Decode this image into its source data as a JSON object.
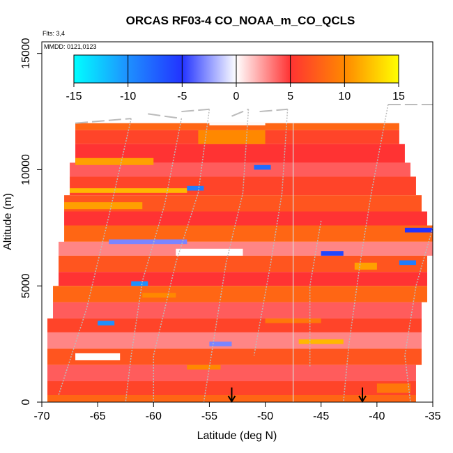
{
  "chart_data": {
    "type": "heatmap",
    "title": "ORCAS RF03-4 CO_NOAA_m_CO_QCLS",
    "flights_label": "Flts: 3,4",
    "date_label": "MMDD: 0121,0123",
    "xlabel": "Latitude (deg N)",
    "ylabel": "Altitude (m)",
    "xlim": [
      -70,
      -35
    ],
    "ylim": [
      0,
      15500
    ],
    "x_ticks": [
      -70,
      -65,
      -60,
      -55,
      -50,
      -45,
      -40,
      -35
    ],
    "x_tick_labels": [
      "-70",
      "-65",
      "-60",
      "-55",
      "-50",
      "-45",
      "-40",
      "-35"
    ],
    "y_ticks": [
      0,
      5000,
      10000,
      15000
    ],
    "y_tick_labels": [
      "0",
      "5000",
      "10000",
      "15000"
    ],
    "colorbar": {
      "range": [
        -15,
        15
      ],
      "ticks": [
        -15,
        -10,
        -5,
        0,
        5,
        10,
        15
      ],
      "tick_labels": [
        "-15",
        "-10",
        "-5",
        "0",
        "5",
        "10",
        "15"
      ],
      "colors": [
        "#00ffff",
        "#1e90ff",
        "#2233ff",
        "#ffffff",
        "#ff3333",
        "#ff8800",
        "#ffff00"
      ]
    },
    "arrow_latitudes": [
      -53,
      -41.3
    ],
    "vertical_line_latitude": -47.5,
    "profile_bands": [
      {
        "lat": [
          -67.0,
          -38.0
        ],
        "alt": [
          11700,
          12000
        ],
        "value": 8
      },
      {
        "lat": [
          -67.0,
          -38.0
        ],
        "alt": [
          11100,
          11700
        ],
        "value": 6
      },
      {
        "lat": [
          -67.0,
          -37.5
        ],
        "alt": [
          10300,
          11100
        ],
        "value": 5
      },
      {
        "lat": [
          -67.5,
          -37.0
        ],
        "alt": [
          9700,
          10300
        ],
        "value": 4
      },
      {
        "lat": [
          -67.5,
          -36.5
        ],
        "alt": [
          8900,
          9700
        ],
        "value": 6
      },
      {
        "lat": [
          -68.0,
          -36.0
        ],
        "alt": [
          8200,
          8900
        ],
        "value": 7
      },
      {
        "lat": [
          -68.0,
          -35.5
        ],
        "alt": [
          7600,
          8200
        ],
        "value": 5
      },
      {
        "lat": [
          -68.0,
          -35.0
        ],
        "alt": [
          6900,
          7600
        ],
        "value": 8
      },
      {
        "lat": [
          -68.5,
          -35.0
        ],
        "alt": [
          6300,
          6900
        ],
        "value": 3
      },
      {
        "lat": [
          -68.5,
          -35.5
        ],
        "alt": [
          5600,
          6300
        ],
        "value": 7
      },
      {
        "lat": [
          -68.5,
          -35.5
        ],
        "alt": [
          5000,
          5600
        ],
        "value": 5
      },
      {
        "lat": [
          -69.0,
          -35.5
        ],
        "alt": [
          4300,
          5000
        ],
        "value": 8
      },
      {
        "lat": [
          -69.0,
          -36.0
        ],
        "alt": [
          3600,
          4300
        ],
        "value": 4
      },
      {
        "lat": [
          -69.5,
          -36.0
        ],
        "alt": [
          3000,
          3600
        ],
        "value": 6
      },
      {
        "lat": [
          -69.5,
          -36.0
        ],
        "alt": [
          2300,
          3000
        ],
        "value": 3
      },
      {
        "lat": [
          -69.5,
          -36.0
        ],
        "alt": [
          1600,
          2300
        ],
        "value": 7
      },
      {
        "lat": [
          -69.5,
          -36.5
        ],
        "alt": [
          900,
          1600
        ],
        "value": 4
      },
      {
        "lat": [
          -69.5,
          -36.5
        ],
        "alt": [
          300,
          900
        ],
        "value": 6
      },
      {
        "lat": [
          -69.5,
          -36.5
        ],
        "alt": [
          0,
          300
        ],
        "value": 8
      }
    ],
    "anomalies": [
      {
        "lat": [
          -56.0,
          -50.0
        ],
        "alt": [
          11100,
          11700
        ],
        "value": 10
      },
      {
        "lat": [
          -67.0,
          -60.0
        ],
        "alt": [
          10200,
          10500
        ],
        "value": 11
      },
      {
        "lat": [
          -67.5,
          -57.0
        ],
        "alt": [
          9000,
          9200
        ],
        "value": 12
      },
      {
        "lat": [
          -68.0,
          -61.0
        ],
        "alt": [
          8300,
          8600
        ],
        "value": 11
      },
      {
        "lat": [
          -51.0,
          -49.5
        ],
        "alt": [
          10000,
          10200
        ],
        "value": -8
      },
      {
        "lat": [
          -57.0,
          -55.5
        ],
        "alt": [
          9100,
          9300
        ],
        "value": -9
      },
      {
        "lat": [
          -64.0,
          -57.0
        ],
        "alt": [
          6800,
          7000
        ],
        "value": -3
      },
      {
        "lat": [
          -37.5,
          -35.0
        ],
        "alt": [
          7300,
          7500
        ],
        "value": -5
      },
      {
        "lat": [
          -45.0,
          -43.0
        ],
        "alt": [
          6300,
          6500
        ],
        "value": -6
      },
      {
        "lat": [
          -38.0,
          -36.5
        ],
        "alt": [
          5900,
          6100
        ],
        "value": -9
      },
      {
        "lat": [
          -62.0,
          -60.5
        ],
        "alt": [
          5000,
          5200
        ],
        "value": -10
      },
      {
        "lat": [
          -65.0,
          -63.5
        ],
        "alt": [
          3300,
          3500
        ],
        "value": -10
      },
      {
        "lat": [
          -55.0,
          -53.0
        ],
        "alt": [
          2400,
          2600
        ],
        "value": -3
      },
      {
        "lat": [
          -47.0,
          -43.0
        ],
        "alt": [
          2500,
          2700
        ],
        "value": 12
      },
      {
        "lat": [
          -42.0,
          -40.0
        ],
        "alt": [
          5700,
          6000
        ],
        "value": 11
      },
      {
        "lat": [
          -61.0,
          -58.0
        ],
        "alt": [
          4500,
          4700
        ],
        "value": 10
      },
      {
        "lat": [
          -50.0,
          -45.0
        ],
        "alt": [
          3400,
          3600
        ],
        "value": 9
      },
      {
        "lat": [
          -57.0,
          -54.0
        ],
        "alt": [
          1400,
          1600
        ],
        "value": 10
      },
      {
        "lat": [
          -55.0,
          -50.0
        ],
        "alt": [
          12000,
          12000
        ],
        "value": 0
      },
      {
        "lat": [
          -40.0,
          -37.0
        ],
        "alt": [
          400,
          800
        ],
        "value": 9
      },
      {
        "lat": [
          -67.0,
          -63.0
        ],
        "alt": [
          1800,
          2100
        ],
        "value": 0
      },
      {
        "lat": [
          -58.0,
          -52.0
        ],
        "alt": [
          6300,
          6600
        ],
        "value": 0
      }
    ],
    "flight_track": {
      "legs": [
        [
          [
            -67.0,
            12000
          ],
          [
            -62.0,
            12200
          ]
        ],
        [
          [
            -60.5,
            12400
          ],
          [
            -57.5,
            12200
          ]
        ],
        [
          [
            -57.5,
            12500
          ],
          [
            -55.0,
            12600
          ]
        ],
        [
          [
            -53.0,
            12300
          ],
          [
            -51.5,
            12600
          ]
        ],
        [
          [
            -50.5,
            12500
          ],
          [
            -48.0,
            12600
          ]
        ],
        [
          [
            -39.0,
            12800
          ],
          [
            -34.5,
            12800
          ]
        ]
      ],
      "profiles": [
        [
          [
            -62.0,
            12200
          ],
          [
            -64.0,
            8000
          ],
          [
            -66.0,
            4000
          ],
          [
            -68.5,
            300
          ]
        ],
        [
          [
            -57.5,
            12200
          ],
          [
            -59.0,
            8500
          ],
          [
            -61.0,
            5200
          ],
          [
            -62.0,
            2000
          ],
          [
            -62.5,
            0
          ]
        ],
        [
          [
            -55.0,
            12600
          ],
          [
            -56.0,
            9000
          ],
          [
            -58.0,
            6000
          ],
          [
            -60.0,
            2000
          ],
          [
            -60.0,
            0
          ]
        ],
        [
          [
            -51.5,
            12600
          ],
          [
            -52.0,
            9000
          ],
          [
            -53.5,
            6000
          ],
          [
            -55.0,
            1500
          ],
          [
            -55.5,
            0
          ]
        ],
        [
          [
            -48.0,
            12600
          ],
          [
            -48.5,
            9000
          ],
          [
            -49.5,
            6000
          ],
          [
            -51.0,
            2000
          ]
        ],
        [
          [
            -39.0,
            12800
          ],
          [
            -40.5,
            9000
          ],
          [
            -41.5,
            6000
          ],
          [
            -42.5,
            2500
          ],
          [
            -43.0,
            0
          ]
        ],
        [
          [
            -35.0,
            7500
          ],
          [
            -36.5,
            5000
          ],
          [
            -37.5,
            2000
          ],
          [
            -37.0,
            0
          ]
        ],
        [
          [
            -45.0,
            7800
          ],
          [
            -46.0,
            5000
          ],
          [
            -46.0,
            1500
          ]
        ]
      ]
    }
  }
}
